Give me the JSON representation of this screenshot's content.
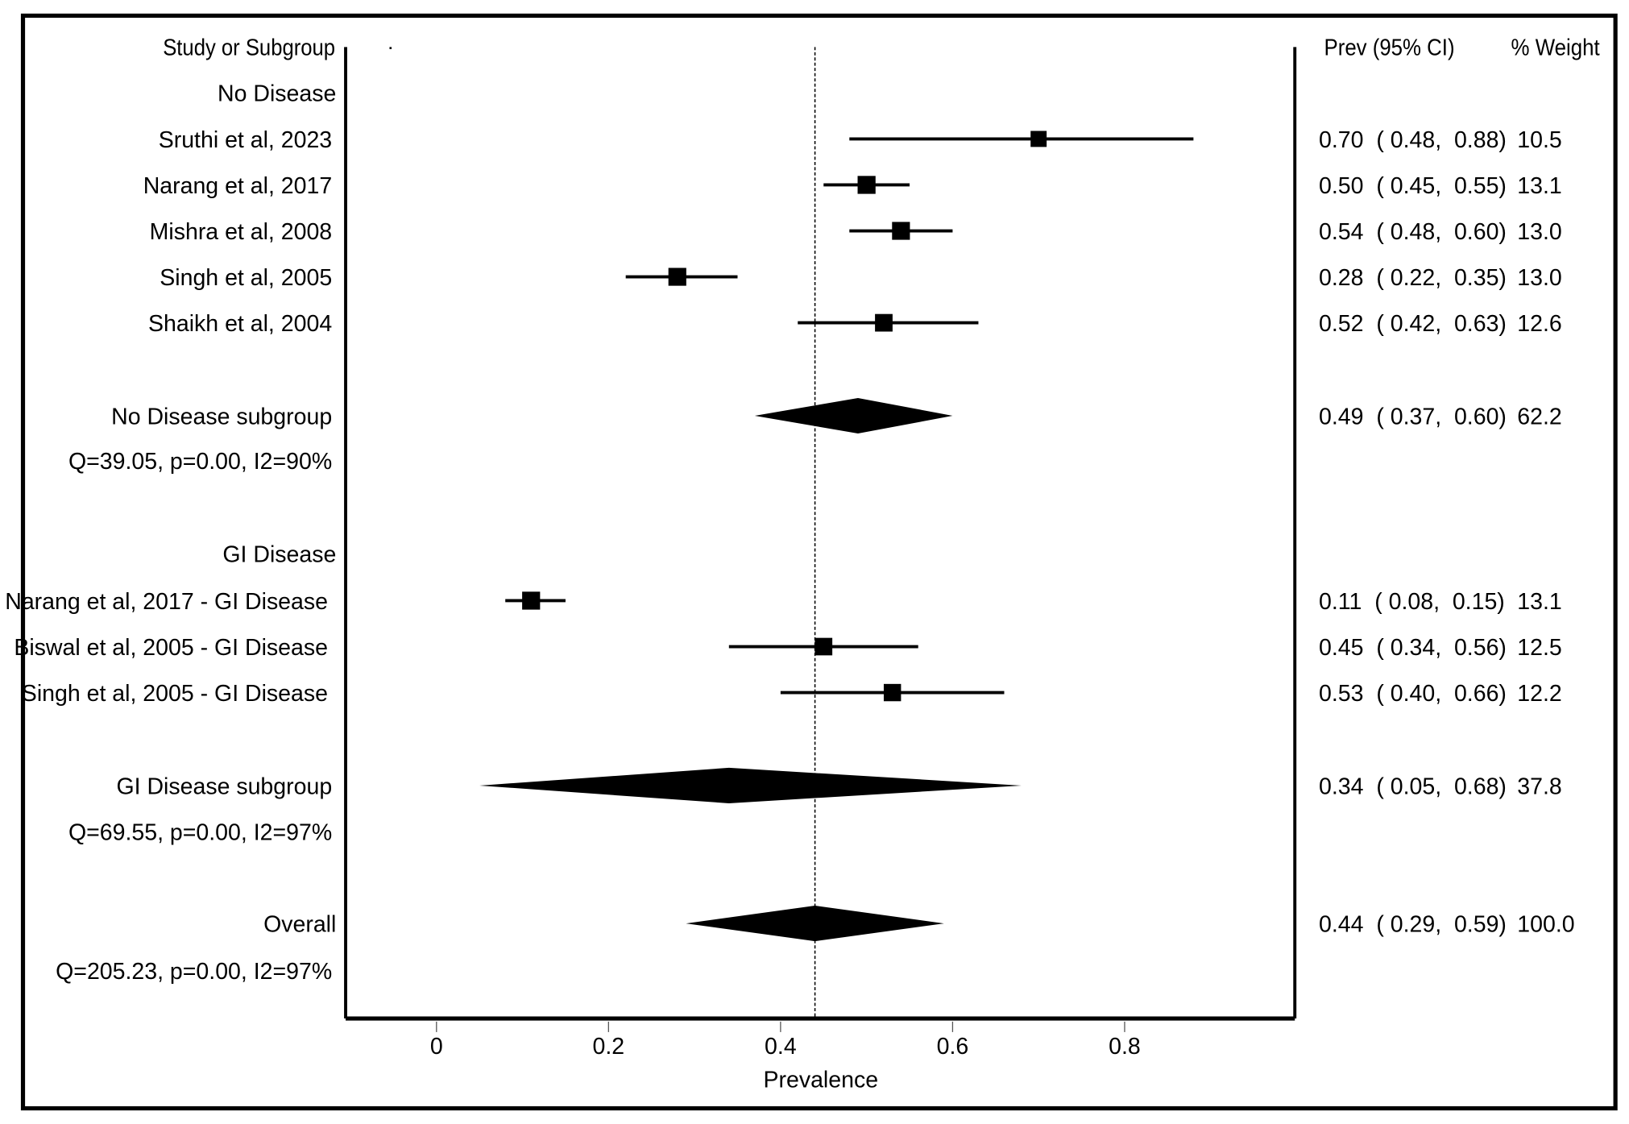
{
  "chart_data": {
    "type": "forest",
    "columns": {
      "study": "Study or Subgroup",
      "estimate": "Prev (95% CI)",
      "weight": "% Weight"
    },
    "xlabel": "Prevalence",
    "xticks": [
      "0",
      "0.2",
      "0.4",
      "0.6",
      "0.8"
    ],
    "xlim": [
      -0.106,
      0.996
    ],
    "reference_line": 0.44,
    "rows": [
      {
        "kind": "header",
        "label": "No Disease"
      },
      {
        "kind": "study",
        "label": "Sruthi et al, 2023",
        "est": 0.7,
        "lo": 0.48,
        "hi": 0.88,
        "text": "0.70  ( 0.48,  0.88)",
        "weight": "10.5"
      },
      {
        "kind": "study",
        "label": "Narang et al, 2017",
        "est": 0.5,
        "lo": 0.45,
        "hi": 0.55,
        "text": "0.50  ( 0.45,  0.55)",
        "weight": "13.1"
      },
      {
        "kind": "study",
        "label": "Mishra et al, 2008",
        "est": 0.54,
        "lo": 0.48,
        "hi": 0.6,
        "text": "0.54  ( 0.48,  0.60)",
        "weight": "13.0"
      },
      {
        "kind": "study",
        "label": "Singh et al, 2005",
        "est": 0.28,
        "lo": 0.22,
        "hi": 0.35,
        "text": "0.28  ( 0.22,  0.35)",
        "weight": "13.0"
      },
      {
        "kind": "study",
        "label": "Shaikh et al, 2004",
        "est": 0.52,
        "lo": 0.42,
        "hi": 0.63,
        "text": "0.52  ( 0.42,  0.63)",
        "weight": "12.6"
      },
      {
        "kind": "summary",
        "label": "No Disease subgroup",
        "est": 0.49,
        "lo": 0.37,
        "hi": 0.6,
        "text": "0.49  ( 0.37,  0.60)",
        "weight": "62.2"
      },
      {
        "kind": "stat",
        "label": "Q=39.05, p=0.00, I2=90%"
      },
      {
        "kind": "header",
        "label": "GI Disease"
      },
      {
        "kind": "study",
        "label": "Narang et al, 2017  - GI Disease",
        "est": 0.11,
        "lo": 0.08,
        "hi": 0.15,
        "text": "0.11  ( 0.08,  0.15)",
        "weight": "13.1"
      },
      {
        "kind": "study",
        "label": "Biswal et al, 2005 - GI Disease",
        "est": 0.45,
        "lo": 0.34,
        "hi": 0.56,
        "text": "0.45  ( 0.34,  0.56)",
        "weight": "12.5"
      },
      {
        "kind": "study",
        "label": "Singh et al, 2005 - GI Disease",
        "est": 0.53,
        "lo": 0.4,
        "hi": 0.66,
        "text": "0.53  ( 0.40,  0.66)",
        "weight": "12.2"
      },
      {
        "kind": "summary",
        "label": "GI Disease subgroup",
        "est": 0.34,
        "lo": 0.05,
        "hi": 0.68,
        "text": "0.34  ( 0.05,  0.68)",
        "weight": "37.8"
      },
      {
        "kind": "stat",
        "label": "Q=69.55, p=0.00, I2=97%"
      },
      {
        "kind": "summary",
        "label": "Overall",
        "est": 0.44,
        "lo": 0.29,
        "hi": 0.59,
        "text": "0.44  ( 0.29,  0.59)",
        "weight": "100.0"
      },
      {
        "kind": "stat",
        "label": "Q=205.23, p=0.00, I2=97%"
      }
    ]
  }
}
